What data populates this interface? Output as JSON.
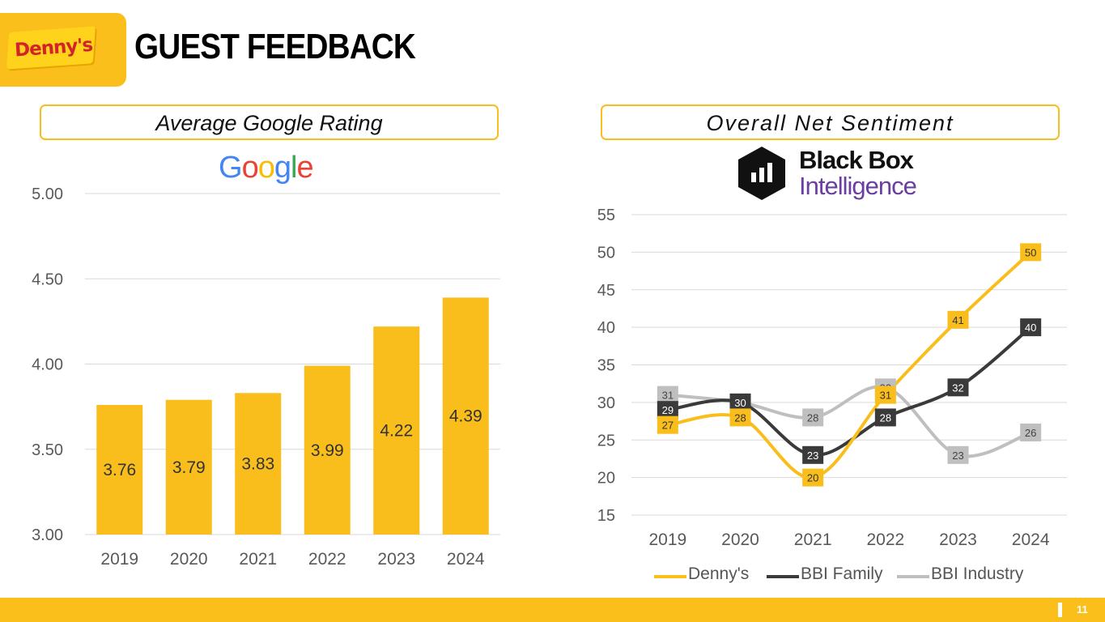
{
  "header": {
    "brand_logo_text": "Denny's",
    "title": "GUEST FEEDBACK"
  },
  "left_panel": {
    "title": "Average Google Rating",
    "logo_text": "Google"
  },
  "right_panel": {
    "title": "Overall Net Sentiment",
    "logo_line1": "Black Box",
    "logo_line2": "Intelligence"
  },
  "footer": {
    "page_number": "11"
  },
  "colors": {
    "yellow": "#f9be1c",
    "dark": "#3a3a3a",
    "gray": "#bfbfbf",
    "google_blue": "#4285f4",
    "google_red": "#ea4335",
    "google_yellow": "#fbbc05",
    "google_green": "#34a853",
    "bbi_purple": "#6b3fa0"
  },
  "chart_data": [
    {
      "type": "bar",
      "categories": [
        "2019",
        "2020",
        "2021",
        "2022",
        "2023",
        "2024"
      ],
      "values": [
        3.76,
        3.79,
        3.83,
        3.99,
        4.22,
        4.39
      ],
      "value_labels": [
        "3.76",
        "3.79",
        "3.83",
        "3.99",
        "4.22",
        "4.39"
      ],
      "ylim": [
        3.0,
        5.0
      ],
      "yticks": [
        "3.00",
        "3.50",
        "4.00",
        "4.50",
        "5.00"
      ],
      "grid": true,
      "legend": "none"
    },
    {
      "type": "line",
      "smooth": true,
      "categories": [
        "2019",
        "2020",
        "2021",
        "2022",
        "2023",
        "2024"
      ],
      "series": [
        {
          "name": "Denny's",
          "values": [
            27,
            28,
            20,
            31,
            41,
            50
          ]
        },
        {
          "name": "BBI Family",
          "values": [
            29,
            30,
            23,
            28,
            32,
            40
          ]
        },
        {
          "name": "BBI Industry",
          "values": [
            31,
            30,
            28,
            32,
            23,
            26
          ]
        }
      ],
      "ylim": [
        15,
        55
      ],
      "yticks": [
        "15",
        "20",
        "25",
        "30",
        "35",
        "40",
        "45",
        "50",
        "55"
      ],
      "grid": true,
      "legend": "bottom"
    }
  ]
}
